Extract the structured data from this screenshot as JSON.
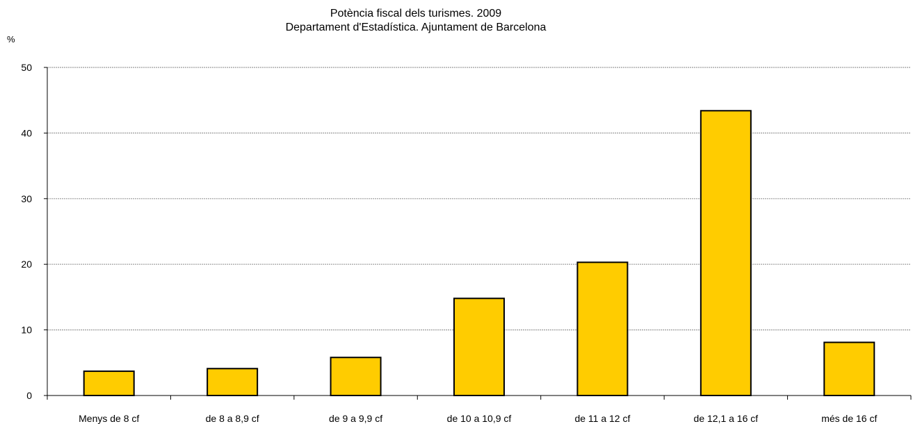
{
  "chart_data": {
    "type": "bar",
    "title": "Potència fiscal dels turismes. 2009",
    "subtitle": "Departament d'Estadística. Ajuntament de Barcelona",
    "ylabel": "%",
    "xlabel": "",
    "ylim": [
      0,
      50
    ],
    "yticks": [
      "0",
      "10",
      "20",
      "30",
      "40",
      "50"
    ],
    "grid": true,
    "legend": "none",
    "bar_color": "#FFCC00",
    "categories": [
      "Menys de 8 cf",
      "de 8 a 8,9 cf",
      "de 9 a 9,9 cf",
      "de 10 a 10,9 cf",
      "de 11 a 12 cf",
      "de 12,1 a 16 cf",
      "més de 16 cf"
    ],
    "values": [
      3.7,
      4.1,
      5.8,
      14.8,
      20.3,
      43.4,
      8.1
    ]
  }
}
